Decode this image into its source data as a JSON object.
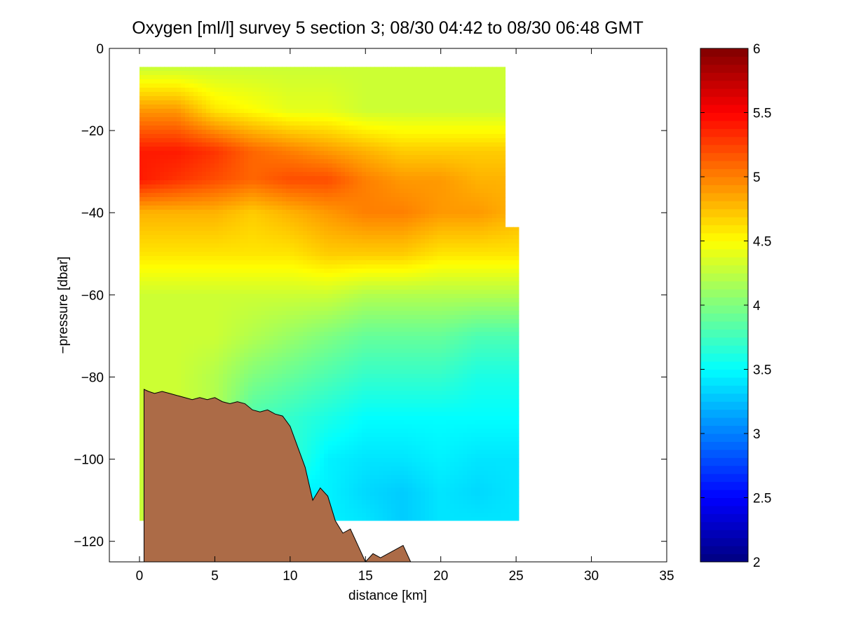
{
  "chart_data": {
    "type": "heatmap",
    "title": "Oxygen [ml/l] survey 5 section 3; 08/30 04:42 to 08/30 06:48 GMT",
    "xlabel": "distance [km]",
    "ylabel": "−pressure [dbar]",
    "xlim": [
      -2,
      35
    ],
    "ylim": [
      -125,
      0
    ],
    "xticks": [
      0,
      5,
      10,
      15,
      20,
      25,
      30,
      35
    ],
    "yticks": [
      0,
      -20,
      -40,
      -60,
      -80,
      -100,
      -120
    ],
    "xtick_labels": [
      "0",
      "5",
      "10",
      "15",
      "20",
      "25",
      "30",
      "35"
    ],
    "ytick_labels": [
      "0",
      "−20",
      "−40",
      "−60",
      "−80",
      "−100",
      "−120"
    ],
    "colorbar": {
      "range": [
        2,
        6
      ],
      "ticks": [
        2,
        2.5,
        3,
        3.5,
        4,
        4.5,
        5,
        5.5,
        6
      ],
      "tick_labels": [
        "2",
        "2.5",
        "3",
        "3.5",
        "4",
        "4.5",
        "5",
        "5.5",
        "6"
      ],
      "colormap": "jet"
    },
    "field_grid": {
      "x": [
        0,
        2.5,
        5,
        7.5,
        10,
        12.5,
        15,
        17.5,
        20,
        22.5,
        25
      ],
      "y": [
        -5,
        -15,
        -25,
        -32,
        -40,
        -50,
        -60,
        -70,
        -80,
        -90,
        -100,
        -108,
        -115
      ],
      "values": [
        [
          4.3,
          4.3,
          4.3,
          4.3,
          4.3,
          4.3,
          4.3,
          4.3,
          4.3,
          4.3,
          4.3
        ],
        [
          4.9,
          4.9,
          4.6,
          4.5,
          4.4,
          4.4,
          4.3,
          4.3,
          4.3,
          4.3,
          4.3
        ],
        [
          5.4,
          5.4,
          5.3,
          5.1,
          5.0,
          4.9,
          4.8,
          4.7,
          4.7,
          4.7,
          4.7
        ],
        [
          5.4,
          5.3,
          5.2,
          5.1,
          5.2,
          5.2,
          5.0,
          4.9,
          4.9,
          4.8,
          4.8
        ],
        [
          4.8,
          4.8,
          4.8,
          4.7,
          4.8,
          4.9,
          5.0,
          5.0,
          4.9,
          4.9,
          4.8
        ],
        [
          4.6,
          4.6,
          4.6,
          4.6,
          4.6,
          4.7,
          4.7,
          4.7,
          4.6,
          4.6,
          4.6
        ],
        [
          4.3,
          4.3,
          4.3,
          4.3,
          4.3,
          4.3,
          4.2,
          4.2,
          4.2,
          4.2,
          4.2
        ],
        [
          4.3,
          4.3,
          4.3,
          4.2,
          4.1,
          4.0,
          3.9,
          3.9,
          3.9,
          3.8,
          3.8
        ],
        [
          4.3,
          4.3,
          4.2,
          4.0,
          3.9,
          3.8,
          3.7,
          3.7,
          3.7,
          3.6,
          3.6
        ],
        [
          null,
          null,
          null,
          3.8,
          3.7,
          3.6,
          3.5,
          3.5,
          3.5,
          3.5,
          3.5
        ],
        [
          null,
          null,
          null,
          null,
          null,
          3.45,
          3.4,
          3.4,
          3.45,
          3.4,
          3.4
        ],
        [
          null,
          null,
          null,
          null,
          null,
          3.45,
          3.35,
          3.3,
          3.4,
          3.35,
          3.4
        ],
        [
          null,
          null,
          null,
          null,
          null,
          null,
          3.4,
          3.3,
          3.4,
          3.4,
          3.4
        ]
      ]
    },
    "data_extent": {
      "x_range": [
        0,
        25.2
      ],
      "top_pressure": -4.5,
      "bottom_pressure": -115
    },
    "bathymetry": {
      "color": "#ac6b47",
      "x": [
        0.3,
        0.6,
        1.0,
        1.5,
        2.0,
        2.5,
        3.0,
        3.5,
        4.0,
        4.5,
        5.0,
        5.5,
        6.0,
        6.5,
        7.0,
        7.5,
        8.0,
        8.5,
        9.0,
        9.5,
        10.0,
        10.5,
        11.0,
        11.5,
        12.0,
        12.5,
        13.0,
        13.5,
        14.0,
        14.5,
        15.0,
        15.5,
        16.0,
        16.5,
        17.0,
        17.5,
        18.0
      ],
      "y": [
        -83,
        -83.5,
        -84,
        -83.5,
        -84,
        -84.5,
        -85,
        -85.5,
        -85,
        -85.5,
        -85,
        -86,
        -86.5,
        -86,
        -86.5,
        -88,
        -88.5,
        -88,
        -89,
        -89.5,
        -92,
        -97,
        -102,
        -110,
        -107,
        -109,
        -115,
        -118,
        -117,
        -121,
        -125,
        -123,
        -124,
        -123,
        -122,
        -121,
        -125
      ]
    },
    "colors": {
      "land": "#ac6b47",
      "axes_background": "#ffffff"
    }
  }
}
